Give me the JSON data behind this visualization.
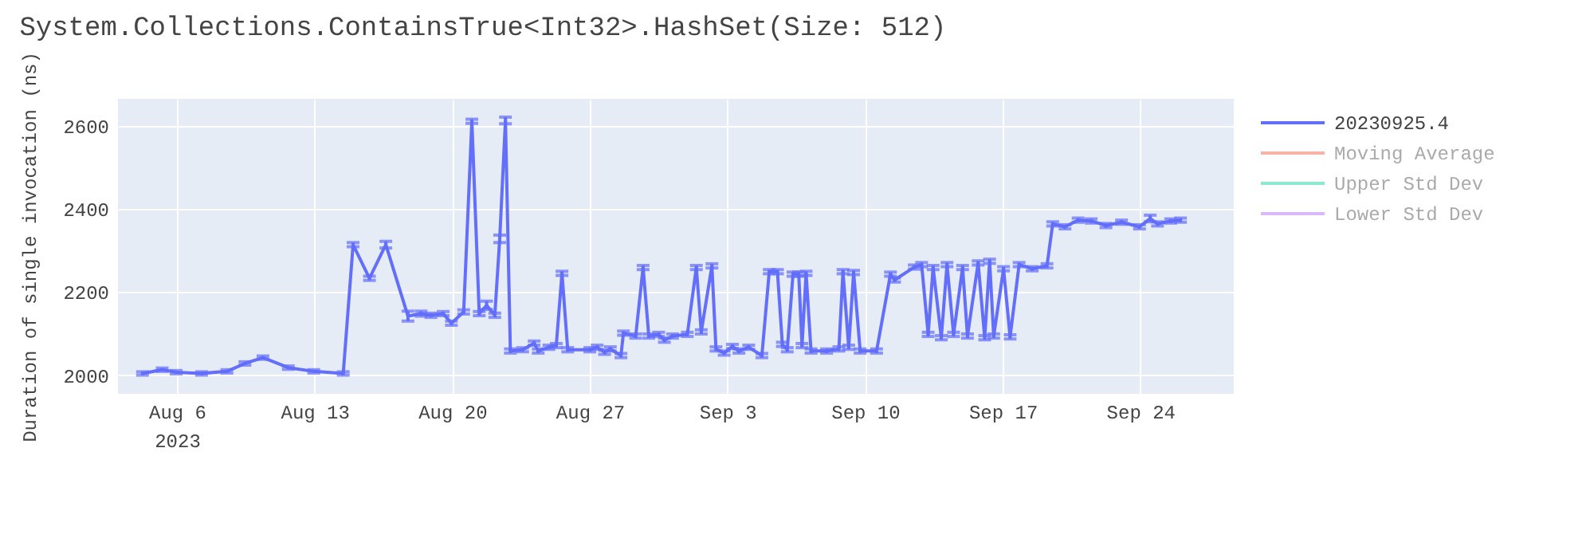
{
  "chart_data": {
    "type": "line",
    "title": "System.Collections.ContainsTrue<Int32>.HashSet(Size: 512)",
    "ylabel": "Duration of single invocation (ns)",
    "x": [
      "2023-08-04T06:00",
      "2023-08-05T06:00",
      "2023-08-05T23:00",
      "2023-08-07T06:00",
      "2023-08-08T13:00",
      "2023-08-09T11:00",
      "2023-08-10T09:00",
      "2023-08-11T16:00",
      "2023-08-12T23:00",
      "2023-08-14T11:00",
      "2023-08-14T23:00",
      "2023-08-15T19:00",
      "2023-08-16T15:00",
      "2023-08-17T18:00",
      "2023-08-18T10:00",
      "2023-08-18T22:00",
      "2023-08-19T13:00",
      "2023-08-19T23:00",
      "2023-08-20T14:00",
      "2023-08-21T00:00",
      "2023-08-21T09:00",
      "2023-08-21T18:00",
      "2023-08-22T04:00",
      "2023-08-22T10:00",
      "2023-08-22T17:00",
      "2023-08-22T23:00",
      "2023-08-23T14:00",
      "2023-08-24T04:00",
      "2023-08-24T09:00",
      "2023-08-24T22:00",
      "2023-08-25T07:00",
      "2023-08-25T14:00",
      "2023-08-25T21:00",
      "2023-08-27T00:00",
      "2023-08-27T09:00",
      "2023-08-27T18:00",
      "2023-08-28T01:00",
      "2023-08-28T14:00",
      "2023-08-28T17:00",
      "2023-08-29T08:00",
      "2023-08-29T17:00",
      "2023-08-30T00:00",
      "2023-08-30T12:00",
      "2023-08-30T19:00",
      "2023-08-31T05:00",
      "2023-08-31T23:00",
      "2023-09-01T10:00",
      "2023-09-01T16:00",
      "2023-09-02T05:00",
      "2023-09-02T10:00",
      "2023-09-02T20:00",
      "2023-09-03T06:00",
      "2023-09-03T14:00",
      "2023-09-04T02:00",
      "2023-09-04T18:00",
      "2023-09-05T03:00",
      "2023-09-05T13:00",
      "2023-09-05T19:00",
      "2023-09-06T01:00",
      "2023-09-06T08:00",
      "2023-09-06T15:00",
      "2023-09-06T19:00",
      "2023-09-07T00:00",
      "2023-09-07T06:00",
      "2023-09-08T01:00",
      "2023-09-08T16:00",
      "2023-09-08T21:00",
      "2023-09-09T04:00",
      "2023-09-09T10:00",
      "2023-09-09T18:00",
      "2023-09-10T14:00",
      "2023-09-11T07:00",
      "2023-09-11T12:00",
      "2023-09-12T12:00",
      "2023-09-12T21:00",
      "2023-09-13T05:00",
      "2023-09-13T11:00",
      "2023-09-13T21:00",
      "2023-09-14T04:00",
      "2023-09-14T12:00",
      "2023-09-14T23:00",
      "2023-09-15T05:00",
      "2023-09-15T18:00",
      "2023-09-16T02:00",
      "2023-09-16T08:00",
      "2023-09-16T13:00",
      "2023-09-17T01:00",
      "2023-09-17T09:00",
      "2023-09-17T20:00",
      "2023-09-18T12:00",
      "2023-09-19T06:00",
      "2023-09-19T13:00",
      "2023-09-20T04:00",
      "2023-09-20T20:00",
      "2023-09-21T12:00",
      "2023-09-22T06:00",
      "2023-09-23T01:00",
      "2023-09-23T23:00",
      "2023-09-24T12:00",
      "2023-09-24T21:00",
      "2023-09-25T13:00",
      "2023-09-26T01:00"
    ],
    "series": [
      {
        "name": "20230925.4",
        "color": "#636efa",
        "values": [
          2004,
          2013,
          2007,
          2004,
          2009,
          2028,
          2042,
          2018,
          2009,
          2004,
          2314,
          2233,
          2314,
          2142,
          2148,
          2144,
          2148,
          2125,
          2152,
          2611,
          2148,
          2168,
          2144,
          2328,
          2613,
          2058,
          2061,
          2077,
          2058,
          2067,
          2071,
          2245,
          2061,
          2061,
          2067,
          2055,
          2063,
          2047,
          2101,
          2094,
          2259,
          2094,
          2098,
          2084,
          2094,
          2098,
          2259,
          2104,
          2263,
          2063,
          2053,
          2069,
          2058,
          2067,
          2047,
          2249,
          2249,
          2074,
          2061,
          2243,
          2243,
          2071,
          2245,
          2058,
          2058,
          2063,
          2249,
          2067,
          2247,
          2058,
          2058,
          2243,
          2229,
          2260,
          2266,
          2098,
          2259,
          2090,
          2266,
          2098,
          2259,
          2094,
          2270,
          2090,
          2274,
          2094,
          2256,
          2092,
          2266,
          2256,
          2263,
          2364,
          2357,
          2373,
          2371,
          2360,
          2368,
          2357,
          2377,
          2364,
          2371,
          2373
        ],
        "errors": [
          4,
          4,
          4,
          4,
          4,
          4,
          4,
          4,
          4,
          4,
          5,
          5,
          8,
          12,
          6,
          5,
          5,
          5,
          5,
          5,
          5,
          10,
          5,
          9,
          8,
          5,
          5,
          5,
          5,
          5,
          5,
          5,
          5,
          5,
          5,
          5,
          5,
          5,
          5,
          5,
          5,
          5,
          5,
          5,
          5,
          5,
          5,
          5,
          5,
          5,
          5,
          5,
          5,
          5,
          5,
          5,
          5,
          5,
          5,
          5,
          5,
          5,
          5,
          5,
          5,
          5,
          5,
          5,
          5,
          5,
          5,
          5,
          5,
          5,
          5,
          5,
          5,
          5,
          5,
          5,
          5,
          5,
          5,
          5,
          5,
          5,
          5,
          5,
          5,
          5,
          5,
          5,
          5,
          5,
          5,
          5,
          5,
          5,
          8,
          5,
          5,
          5
        ]
      },
      {
        "name": "Moving Average",
        "color": "#ef553b",
        "values": [
          null,
          null,
          null,
          null,
          null,
          null,
          null,
          null,
          null,
          null,
          null,
          null,
          null,
          null,
          null,
          null,
          null,
          null,
          null,
          null,
          null,
          null,
          null,
          null,
          null,
          null,
          null,
          null,
          null,
          null,
          null,
          null,
          null,
          null,
          null,
          null,
          null,
          null,
          null,
          null,
          null,
          null,
          null,
          null,
          null,
          null,
          null,
          null,
          null,
          null,
          null,
          null,
          null,
          null,
          null,
          null,
          null,
          null,
          null,
          null,
          null,
          null,
          null,
          null,
          null,
          null,
          null,
          null,
          null,
          null,
          null,
          null,
          null,
          null,
          null,
          null,
          null,
          null,
          null,
          null,
          null,
          null,
          null,
          null,
          null,
          null,
          null,
          null,
          null,
          null,
          null,
          null,
          null,
          null,
          null,
          null,
          null,
          null,
          null,
          null,
          null,
          null
        ]
      },
      {
        "name": "Upper Std Dev",
        "color": "#00cc96",
        "values": [
          null,
          null,
          null,
          null,
          null,
          null,
          null,
          null,
          null,
          null,
          null,
          null,
          null,
          null,
          null,
          null,
          null,
          null,
          null,
          null,
          null,
          null,
          null,
          null,
          null,
          null,
          null,
          null,
          null,
          null,
          null,
          null,
          null,
          null,
          null,
          null,
          null,
          null,
          null,
          null,
          null,
          null,
          null,
          null,
          null,
          null,
          null,
          null,
          null,
          null,
          null,
          null,
          null,
          null,
          null,
          null,
          null,
          null,
          null,
          null,
          null,
          null,
          null,
          null,
          null,
          null,
          null,
          null,
          null,
          null,
          null,
          null,
          null,
          null,
          null,
          null,
          null,
          null,
          null,
          null,
          null,
          null,
          null,
          null,
          null,
          null,
          null,
          null,
          null,
          null,
          null,
          null,
          null,
          null,
          null,
          null,
          null,
          null,
          null,
          null,
          null,
          null
        ]
      },
      {
        "name": "Lower Std Dev",
        "color": "#ab63fa",
        "values": [
          null,
          null,
          null,
          null,
          null,
          null,
          null,
          null,
          null,
          null,
          null,
          null,
          null,
          null,
          null,
          null,
          null,
          null,
          null,
          null,
          null,
          null,
          null,
          null,
          null,
          null,
          null,
          null,
          null,
          null,
          null,
          null,
          null,
          null,
          null,
          null,
          null,
          null,
          null,
          null,
          null,
          null,
          null,
          null,
          null,
          null,
          null,
          null,
          null,
          null,
          null,
          null,
          null,
          null,
          null,
          null,
          null,
          null,
          null,
          null,
          null,
          null,
          null,
          null,
          null,
          null,
          null,
          null,
          null,
          null,
          null,
          null,
          null,
          null,
          null,
          null,
          null,
          null,
          null,
          null,
          null,
          null,
          null,
          null,
          null,
          null,
          null,
          null,
          null,
          null,
          null,
          null,
          null,
          null,
          null,
          null,
          null,
          null,
          null,
          null,
          null,
          null
        ]
      }
    ],
    "xlim": [
      "2023-08-03T00:00",
      "2023-09-28T18:00"
    ],
    "xticks": [
      {
        "value": "2023-08-06",
        "label": "Aug 6\n2023"
      },
      {
        "value": "2023-08-13",
        "label": "Aug 13"
      },
      {
        "value": "2023-08-20",
        "label": "Aug 20"
      },
      {
        "value": "2023-08-27",
        "label": "Aug 27"
      },
      {
        "value": "2023-09-03",
        "label": "Sep 3"
      },
      {
        "value": "2023-09-10",
        "label": "Sep 10"
      },
      {
        "value": "2023-09-17",
        "label": "Sep 17"
      },
      {
        "value": "2023-09-24",
        "label": "Sep 24"
      }
    ],
    "ylim": [
      1955,
      2665
    ],
    "yticks": [
      2000,
      2200,
      2400,
      2600
    ],
    "grid": true,
    "legend": "right",
    "line_style": "solid"
  }
}
